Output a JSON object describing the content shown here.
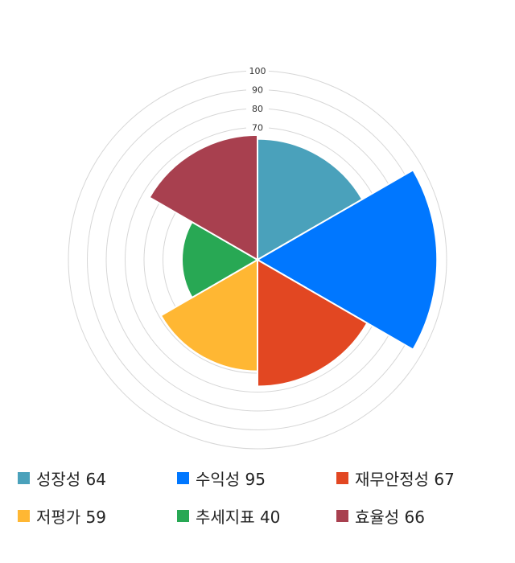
{
  "chart_data": {
    "type": "polar-area",
    "rlim": [
      0,
      100
    ],
    "ring_ticks": [
      10,
      20,
      30,
      40,
      50,
      60,
      70,
      80,
      90,
      100
    ],
    "tick_labels": [
      "70",
      "80",
      "90",
      "100"
    ],
    "grid": true,
    "legend_placement": "bottom",
    "categories": [
      "성장성",
      "수익성",
      "재무안정성",
      "저평가",
      "추세지표",
      "효율성"
    ],
    "values": [
      64,
      95,
      67,
      59,
      40,
      66
    ],
    "colors": [
      "#4aa1bb",
      "#0077ff",
      "#e24722",
      "#ffb733",
      "#28a854",
      "#a8404f"
    ],
    "legend": [
      "성장성 64",
      "수익성 95",
      "재무안정성 67",
      "저평가 59",
      "추세지표 40",
      "효율성 66"
    ]
  }
}
